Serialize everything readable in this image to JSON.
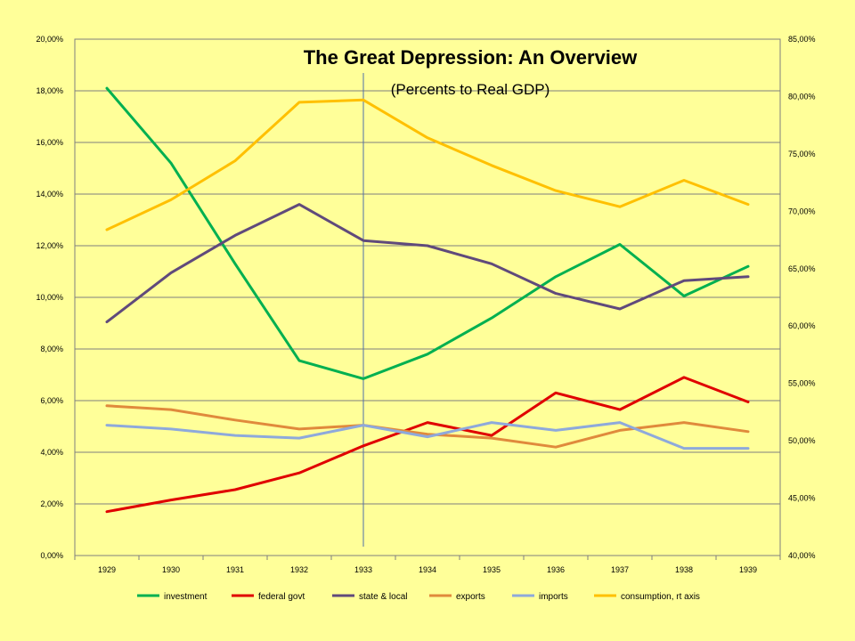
{
  "chart_data": {
    "type": "line",
    "title": "The Great Depression: An Overview",
    "subtitle": "(Percents to Real GDP)",
    "categories": [
      "1929",
      "1930",
      "1931",
      "1932",
      "1933",
      "1934",
      "1935",
      "1936",
      "1937",
      "1938",
      "1939"
    ],
    "y_left": {
      "range": [
        0,
        20
      ],
      "ticks": [
        0,
        2,
        4,
        6,
        8,
        10,
        12,
        14,
        16,
        18,
        20
      ],
      "tick_labels": [
        "0,00%",
        "2,00%",
        "4,00%",
        "6,00%",
        "8,00%",
        "10,00%",
        "12,00%",
        "14,00%",
        "16,00%",
        "18,00%",
        "20,00%"
      ]
    },
    "y_right": {
      "range": [
        40,
        85
      ],
      "ticks": [
        40,
        45,
        50,
        55,
        60,
        65,
        70,
        75,
        80,
        85
      ],
      "tick_labels": [
        "40,00%",
        "45,00%",
        "50,00%",
        "55,00%",
        "60,00%",
        "65,00%",
        "70,00%",
        "75,00%",
        "80,00%",
        "85,00%"
      ]
    },
    "grid": true,
    "legend_position": "bottom",
    "vertical_marker_category": "1933",
    "series": [
      {
        "name": "investment",
        "axis": "left",
        "color": "#00B050",
        "values": [
          18.1,
          15.2,
          11.3,
          7.55,
          6.85,
          7.8,
          9.2,
          10.8,
          12.05,
          10.05,
          11.2
        ]
      },
      {
        "name": "federal govt",
        "axis": "left",
        "color": "#E00000",
        "values": [
          1.7,
          2.15,
          2.55,
          3.2,
          4.25,
          5.15,
          4.65,
          6.3,
          5.65,
          6.9,
          5.95
        ]
      },
      {
        "name": "state & local",
        "axis": "left",
        "color": "#604A7B",
        "values": [
          9.05,
          10.95,
          12.4,
          13.6,
          12.2,
          12.0,
          11.3,
          10.15,
          9.55,
          10.65,
          10.8
        ]
      },
      {
        "name": "exports",
        "axis": "left",
        "color": "#E08A3C",
        "values": [
          5.8,
          5.65,
          5.25,
          4.9,
          5.05,
          4.7,
          4.55,
          4.2,
          4.85,
          5.15,
          4.8
        ]
      },
      {
        "name": "imports",
        "axis": "left",
        "color": "#8EA9DB",
        "values": [
          5.05,
          4.9,
          4.65,
          4.55,
          5.05,
          4.6,
          5.15,
          4.85,
          5.15,
          4.15,
          4.15
        ]
      },
      {
        "name": "consumption, rt axis",
        "axis": "right",
        "color": "#FFC000",
        "values": [
          68.4,
          71.0,
          74.4,
          79.5,
          79.7,
          76.4,
          74.0,
          71.8,
          70.4,
          72.7,
          70.6
        ]
      }
    ]
  }
}
